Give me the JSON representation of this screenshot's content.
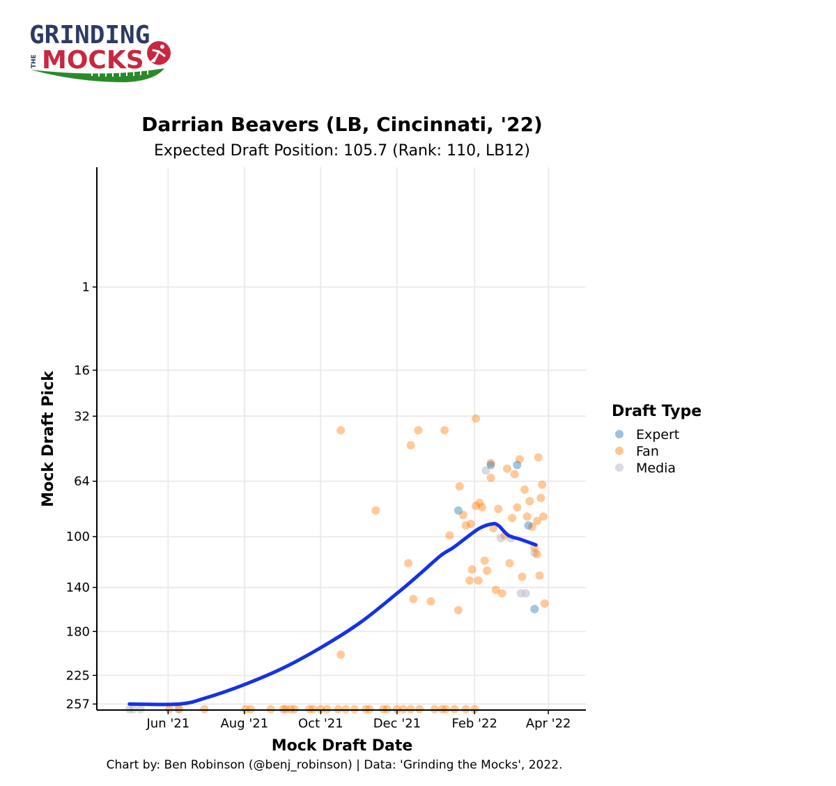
{
  "logo": {
    "line1": "GRINDING",
    "the": "THE",
    "line2": "MOCKS"
  },
  "chart_data": {
    "type": "scatter",
    "title": "Darrian Beavers (LB, Cincinnati, '22)",
    "subtitle": "Expected Draft Position: 105.7 (Rank: 110, LB12)",
    "xlabel": "Mock Draft Date",
    "ylabel": "Mock Draft Pick",
    "x_ticks": [
      {
        "date": "2021-06-01",
        "label": "Jun '21"
      },
      {
        "date": "2021-08-01",
        "label": "Aug '21"
      },
      {
        "date": "2021-10-01",
        "label": "Oct '21"
      },
      {
        "date": "2021-12-01",
        "label": "Dec '21"
      },
      {
        "date": "2022-02-01",
        "label": "Feb '22"
      },
      {
        "date": "2022-04-01",
        "label": "Apr '22"
      }
    ],
    "y_ticks": [
      1,
      16,
      32,
      64,
      100,
      140,
      180,
      225,
      257
    ],
    "y_scale": "square-root, reversed",
    "xlim": [
      "2021-04-05",
      "2022-05-01"
    ],
    "ylim": [
      264,
      -11
    ],
    "grid": true,
    "legend": {
      "title": "Draft Type",
      "placement": "right",
      "entries": [
        {
          "name": "Expert",
          "color": "#1f77b4"
        },
        {
          "name": "Fan",
          "color": "#ff7f0e"
        },
        {
          "name": "Media",
          "color": "#b8bcc8"
        }
      ]
    },
    "trend_line": {
      "color": "#1432e6",
      "points": [
        {
          "x": "2021-05-01",
          "y": 257
        },
        {
          "x": "2021-06-10",
          "y": 257
        },
        {
          "x": "2021-07-01",
          "y": 250
        },
        {
          "x": "2021-08-01",
          "y": 235
        },
        {
          "x": "2021-09-01",
          "y": 217
        },
        {
          "x": "2021-10-01",
          "y": 196
        },
        {
          "x": "2021-11-01",
          "y": 172
        },
        {
          "x": "2021-12-01",
          "y": 145
        },
        {
          "x": "2021-12-20",
          "y": 128
        },
        {
          "x": "2022-01-05",
          "y": 114
        },
        {
          "x": "2022-01-15",
          "y": 108
        },
        {
          "x": "2022-01-25",
          "y": 101
        },
        {
          "x": "2022-02-05",
          "y": 94
        },
        {
          "x": "2022-02-15",
          "y": 91
        },
        {
          "x": "2022-02-20",
          "y": 92
        },
        {
          "x": "2022-02-28",
          "y": 99
        },
        {
          "x": "2022-03-10",
          "y": 102
        },
        {
          "x": "2022-03-22",
          "y": 106
        }
      ]
    },
    "series": [
      {
        "name": "Expert",
        "points": [
          {
            "x": "2022-01-19",
            "y": 82
          },
          {
            "x": "2022-02-14",
            "y": 55
          },
          {
            "x": "2022-03-07",
            "y": 55
          },
          {
            "x": "2022-03-16",
            "y": 92
          },
          {
            "x": "2022-03-21",
            "y": 159
          }
        ]
      },
      {
        "name": "Fan",
        "points": [
          {
            "x": "2021-06-02",
            "y": 263
          },
          {
            "x": "2021-06-10",
            "y": 263
          },
          {
            "x": "2021-06-30",
            "y": 263
          },
          {
            "x": "2021-08-02",
            "y": 263
          },
          {
            "x": "2021-08-06",
            "y": 263
          },
          {
            "x": "2021-08-22",
            "y": 263
          },
          {
            "x": "2021-09-01",
            "y": 263
          },
          {
            "x": "2021-09-03",
            "y": 263
          },
          {
            "x": "2021-09-07",
            "y": 263
          },
          {
            "x": "2021-09-10",
            "y": 263
          },
          {
            "x": "2021-09-22",
            "y": 263
          },
          {
            "x": "2021-09-25",
            "y": 263
          },
          {
            "x": "2021-10-01",
            "y": 263
          },
          {
            "x": "2021-10-06",
            "y": 263
          },
          {
            "x": "2021-10-15",
            "y": 263
          },
          {
            "x": "2021-10-21",
            "y": 263
          },
          {
            "x": "2021-10-28",
            "y": 263
          },
          {
            "x": "2021-11-06",
            "y": 263
          },
          {
            "x": "2021-11-09",
            "y": 263
          },
          {
            "x": "2021-11-20",
            "y": 263
          },
          {
            "x": "2021-11-23",
            "y": 263
          },
          {
            "x": "2021-12-01",
            "y": 263
          },
          {
            "x": "2021-12-06",
            "y": 263
          },
          {
            "x": "2021-12-12",
            "y": 263
          },
          {
            "x": "2021-12-19",
            "y": 263
          },
          {
            "x": "2021-12-31",
            "y": 263
          },
          {
            "x": "2022-01-06",
            "y": 263
          },
          {
            "x": "2022-01-09",
            "y": 263
          },
          {
            "x": "2022-01-16",
            "y": 263
          },
          {
            "x": "2022-01-25",
            "y": 263
          },
          {
            "x": "2022-02-01",
            "y": 263
          },
          {
            "x": "2021-10-17",
            "y": 38
          },
          {
            "x": "2021-10-17",
            "y": 203
          },
          {
            "x": "2021-11-14",
            "y": 82
          },
          {
            "x": "2021-12-10",
            "y": 120
          },
          {
            "x": "2021-12-12",
            "y": 45
          },
          {
            "x": "2021-12-14",
            "y": 150
          },
          {
            "x": "2021-12-18",
            "y": 38
          },
          {
            "x": "2021-12-28",
            "y": 152
          },
          {
            "x": "2022-01-08",
            "y": 38
          },
          {
            "x": "2022-01-12",
            "y": 99
          },
          {
            "x": "2022-01-19",
            "y": 160
          },
          {
            "x": "2022-01-20",
            "y": 67
          },
          {
            "x": "2022-01-23",
            "y": 85
          },
          {
            "x": "2022-01-25",
            "y": 92
          },
          {
            "x": "2022-01-28",
            "y": 134
          },
          {
            "x": "2022-01-29",
            "y": 91
          },
          {
            "x": "2022-01-30",
            "y": 125
          },
          {
            "x": "2022-02-02",
            "y": 33
          },
          {
            "x": "2022-02-02",
            "y": 79
          },
          {
            "x": "2022-02-04",
            "y": 134
          },
          {
            "x": "2022-02-05",
            "y": 77
          },
          {
            "x": "2022-02-07",
            "y": 80
          },
          {
            "x": "2022-02-09",
            "y": 118
          },
          {
            "x": "2022-02-11",
            "y": 126
          },
          {
            "x": "2022-02-14",
            "y": 54
          },
          {
            "x": "2022-02-14",
            "y": 62
          },
          {
            "x": "2022-02-16",
            "y": 94
          },
          {
            "x": "2022-02-18",
            "y": 142
          },
          {
            "x": "2022-02-20",
            "y": 81
          },
          {
            "x": "2022-02-23",
            "y": 145
          },
          {
            "x": "2022-02-25",
            "y": 99
          },
          {
            "x": "2022-02-27",
            "y": 57
          },
          {
            "x": "2022-03-01",
            "y": 120
          },
          {
            "x": "2022-03-03",
            "y": 87
          },
          {
            "x": "2022-03-05",
            "y": 60
          },
          {
            "x": "2022-03-07",
            "y": 80
          },
          {
            "x": "2022-03-09",
            "y": 52
          },
          {
            "x": "2022-03-11",
            "y": 131
          },
          {
            "x": "2022-03-13",
            "y": 69
          },
          {
            "x": "2022-03-15",
            "y": 86
          },
          {
            "x": "2022-03-17",
            "y": 76
          },
          {
            "x": "2022-03-19",
            "y": 93
          },
          {
            "x": "2022-03-21",
            "y": 108
          },
          {
            "x": "2022-03-23",
            "y": 89
          },
          {
            "x": "2022-03-23",
            "y": 113
          },
          {
            "x": "2022-03-24",
            "y": 51
          },
          {
            "x": "2022-03-25",
            "y": 130
          },
          {
            "x": "2022-03-26",
            "y": 74
          },
          {
            "x": "2022-03-27",
            "y": 66
          },
          {
            "x": "2022-03-28",
            "y": 86
          },
          {
            "x": "2022-03-29",
            "y": 154
          }
        ]
      },
      {
        "name": "Media",
        "points": [
          {
            "x": "2021-05-01",
            "y": 263
          },
          {
            "x": "2021-05-04",
            "y": 263
          },
          {
            "x": "2021-05-10",
            "y": 263
          },
          {
            "x": "2021-06-09",
            "y": 263
          },
          {
            "x": "2022-02-10",
            "y": 58
          },
          {
            "x": "2022-02-22",
            "y": 101
          },
          {
            "x": "2022-03-02",
            "y": 101
          },
          {
            "x": "2022-03-10",
            "y": 145
          },
          {
            "x": "2022-03-14",
            "y": 145
          },
          {
            "x": "2022-03-21",
            "y": 112
          }
        ]
      }
    ],
    "caption": "Chart by: Ben Robinson (@benj_robinson) | Data: 'Grinding the Mocks', 2022."
  }
}
